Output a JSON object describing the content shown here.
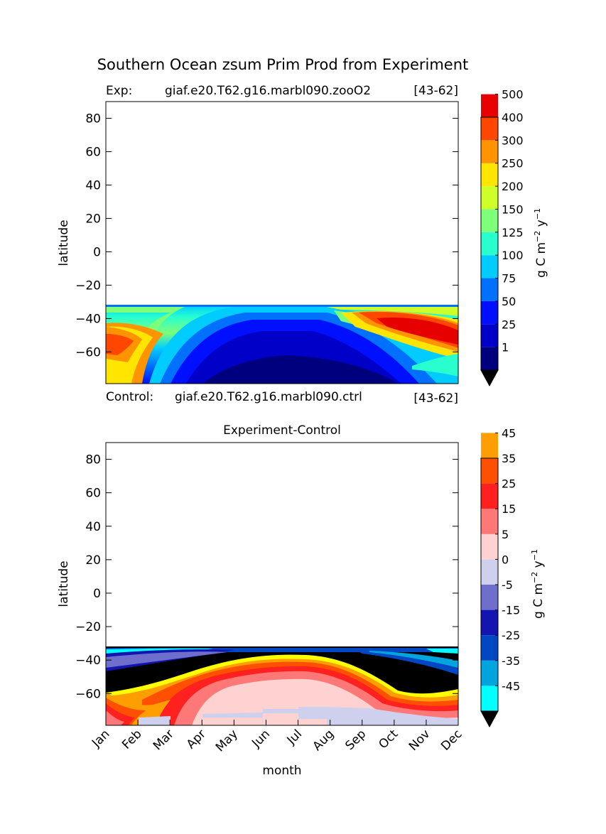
{
  "figure": {
    "title": "Southern Ocean zsum Prim Prod from Experiment"
  },
  "top_panel": {
    "exp_label": "Exp:",
    "exp_case": "giaf.e20.T62.g16.marbl090.zooO2",
    "exp_years": "[43-62]",
    "control_label": "Control:",
    "control_case": "giaf.e20.T62.g16.marbl090.ctrl",
    "control_years": "[43-62]",
    "ylabel": "latitude",
    "yticks": [
      "80",
      "60",
      "40",
      "20",
      "0",
      "−20",
      "−40",
      "−60"
    ],
    "colorbar_units": "g C m",
    "colorbar_units_exp1": "−2",
    "colorbar_units_mid": " y",
    "colorbar_units_exp2": "−1"
  },
  "bottom_panel": {
    "title": "Experiment-Control",
    "ylabel": "latitude",
    "xlabel": "month",
    "yticks": [
      "80",
      "60",
      "40",
      "20",
      "0",
      "−20",
      "−40",
      "−60"
    ],
    "xticks": [
      "Jan",
      "Feb",
      "Mar",
      "Apr",
      "May",
      "Jun",
      "Jul",
      "Aug",
      "Sep",
      "Oct",
      "Nov",
      "Dec"
    ],
    "colorbar_units": "g C m",
    "colorbar_units_exp1": "−2",
    "colorbar_units_mid": " y",
    "colorbar_units_exp2": "−1"
  },
  "chart_data": [
    {
      "type": "heatmap",
      "title": "Southern Ocean zsum Prim Prod from Experiment",
      "xlabel": "",
      "ylabel": "latitude",
      "xlim": [
        1,
        12
      ],
      "ylim": [
        -79,
        90
      ],
      "data_extent_lat": [
        -79,
        -32
      ],
      "colorbar": {
        "label": "g C m-2 y-1",
        "levels": [
          1,
          25,
          50,
          75,
          100,
          125,
          150,
          200,
          250,
          300,
          400,
          500
        ],
        "tick_labels": [
          "1",
          "25",
          "50",
          "75",
          "100",
          "125",
          "150",
          "200",
          "250",
          "300",
          "400",
          "500"
        ],
        "colors": [
          "#00007f",
          "#0000c8",
          "#0010ff",
          "#0070ff",
          "#00ccff",
          "#29ffce",
          "#7dff7a",
          "#ceff29",
          "#ffe500",
          "#ff9400",
          "#ff4700",
          "#e60000",
          "#7f0000"
        ],
        "extend": "both"
      },
      "description_zones": [
        {
          "months": [
            1,
            2
          ],
          "lat": [
            -79,
            -62
          ],
          "value_range": "200-300"
        },
        {
          "months": [
            1,
            2
          ],
          "lat": [
            -62,
            -44
          ],
          "value_range": "300-400"
        },
        {
          "months": [
            5,
            9
          ],
          "lat": [
            -79,
            -60
          ],
          "value_range": "<1-25"
        },
        {
          "months": [
            10,
            12
          ],
          "lat": [
            -60,
            -40
          ],
          "value_range": "400-500"
        }
      ]
    },
    {
      "type": "heatmap",
      "title": "Experiment-Control",
      "xlabel": "month",
      "ylabel": "latitude",
      "xlim": [
        1,
        12
      ],
      "ylim": [
        -79,
        90
      ],
      "data_extent_lat": [
        -79,
        -32
      ],
      "colorbar": {
        "label": "g C m-2 y-1",
        "levels": [
          -45,
          -35,
          -25,
          -15,
          -5,
          0,
          5,
          15,
          25,
          35,
          45
        ],
        "tick_labels": [
          "-45",
          "-35",
          "-25",
          "-15",
          "-5",
          "0",
          "5",
          "15",
          "25",
          "35",
          "45"
        ],
        "colors": [
          "#00ffff",
          "#00a5de",
          "#0047c4",
          "#1414b0",
          "#6e6ecd",
          "#cfcfee",
          "#ffd2d2",
          "#ff7878",
          "#ff2020",
          "#ff5000",
          "#ff9e00",
          "#ffff00"
        ],
        "extend": "both"
      }
    }
  ]
}
